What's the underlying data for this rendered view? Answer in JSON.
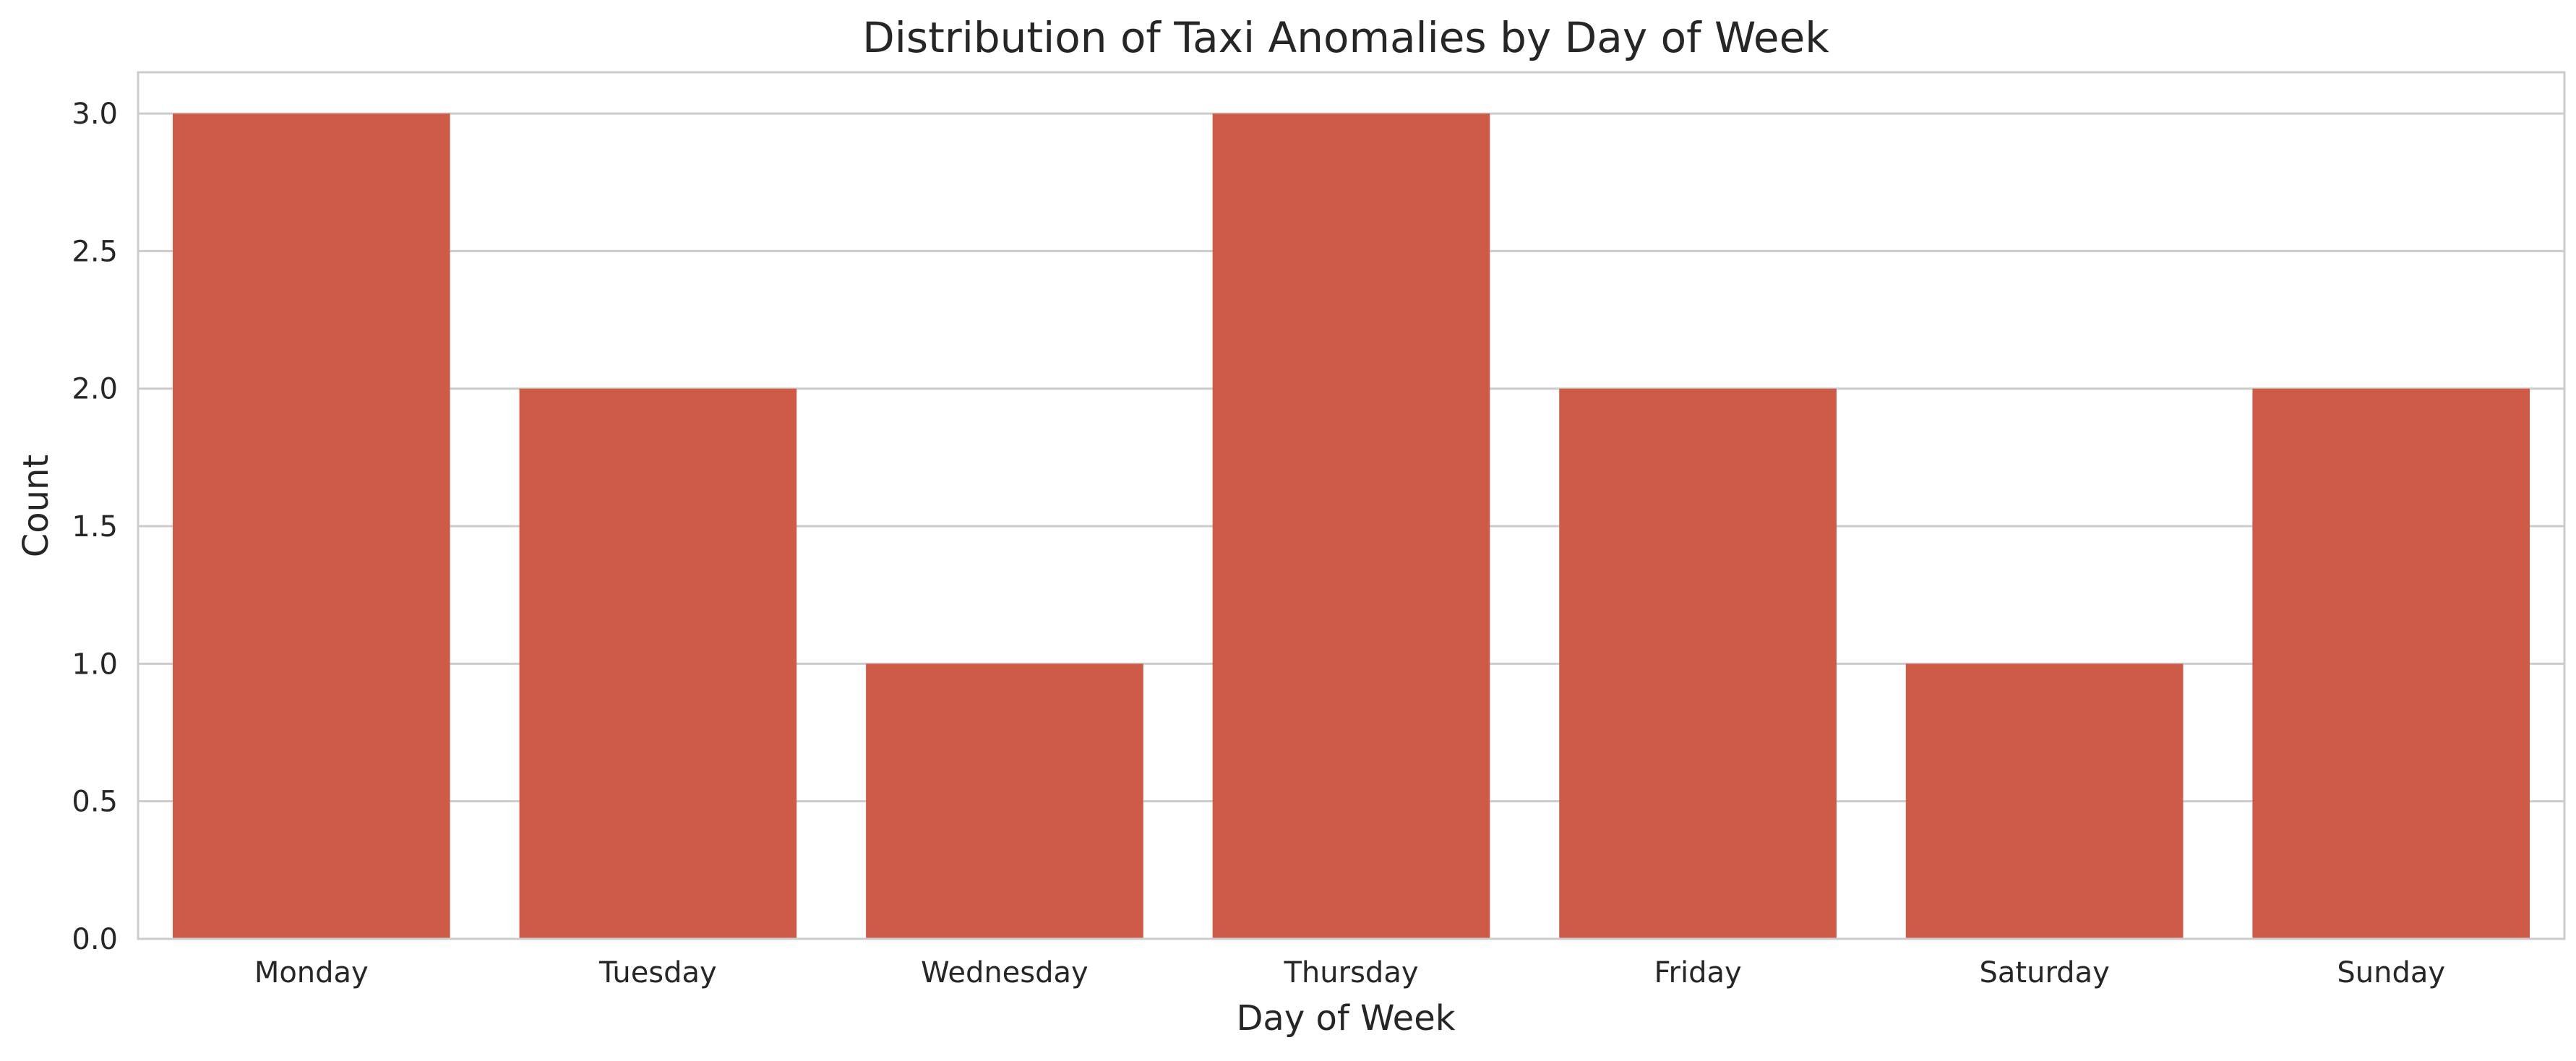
{
  "chart_data": {
    "type": "bar",
    "title": "Distribution of Taxi Anomalies by Day of Week",
    "xlabel": "Day of Week",
    "ylabel": "Count",
    "categories": [
      "Monday",
      "Tuesday",
      "Wednesday",
      "Thursday",
      "Friday",
      "Saturday",
      "Sunday"
    ],
    "values": [
      3,
      2,
      1,
      3,
      2,
      1,
      2
    ],
    "ylim": [
      0,
      3.15
    ],
    "yticks": [
      "0.0",
      "0.5",
      "1.0",
      "1.5",
      "2.0",
      "2.5",
      "3.0"
    ],
    "bar_color": "#cd5b48",
    "grid": true,
    "grid_color": "#cccccc",
    "background": "#ffffff"
  }
}
